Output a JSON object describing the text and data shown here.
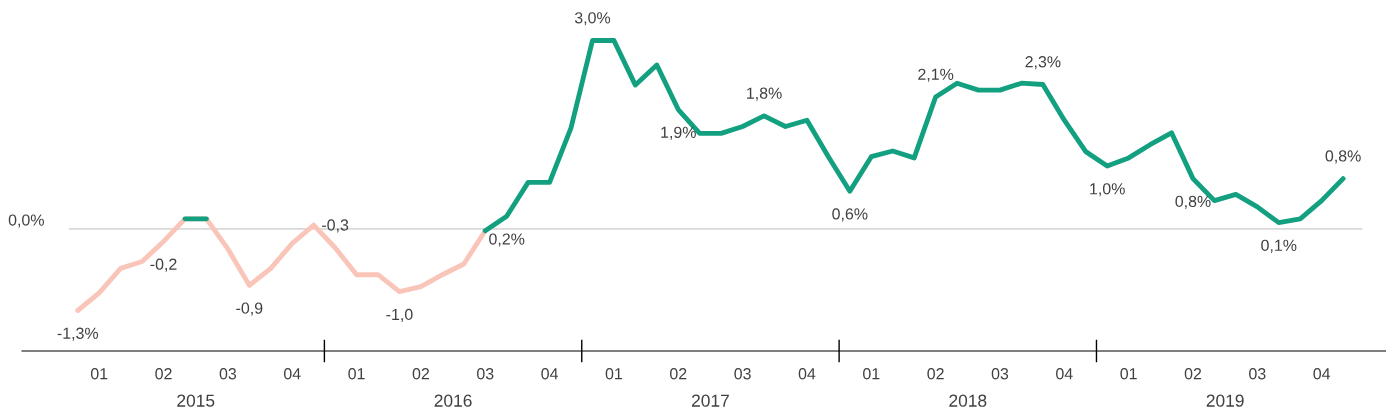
{
  "chart_data": {
    "type": "line",
    "categories": [
      null,
      "01",
      null,
      null,
      "02",
      null,
      null,
      "03",
      null,
      null,
      "04",
      null,
      null,
      "01",
      null,
      null,
      "02",
      null,
      null,
      "03",
      null,
      null,
      "04",
      null,
      null,
      "01",
      null,
      null,
      "02",
      null,
      null,
      "03",
      null,
      null,
      "04",
      null,
      null,
      "01",
      null,
      null,
      "02",
      null,
      null,
      "03",
      null,
      null,
      "04",
      null,
      null,
      "01",
      null,
      null,
      "02",
      null,
      null,
      "03",
      null,
      null,
      "04",
      null
    ],
    "series": [
      {
        "color": "#f9c5b9",
        "values": [
          -1.3,
          -1.02,
          -0.63,
          -0.52,
          -0.2,
          0.16,
          0.16,
          -0.32,
          -0.9,
          -0.63,
          -0.23,
          0.06,
          -0.3,
          -0.73,
          -0.73,
          -1.0,
          -0.92,
          -0.73,
          -0.56,
          -0.03,
          null,
          null,
          null,
          null,
          null,
          null,
          null,
          null,
          null,
          null,
          null,
          null,
          null,
          null,
          null,
          null,
          null,
          null,
          null,
          null,
          null,
          null,
          null,
          null,
          null,
          null,
          null,
          null,
          null,
          null,
          null,
          null,
          null,
          null,
          null,
          null,
          null,
          null,
          null,
          null
        ],
        "value_labels": [
          "-1,3%",
          null,
          null,
          null,
          "-0,2",
          null,
          null,
          null,
          "-0,9",
          null,
          null,
          null,
          "-0,3",
          null,
          null,
          "-1,0",
          null,
          null,
          null,
          null,
          null,
          null,
          null,
          null,
          null,
          null,
          null,
          null,
          null,
          null,
          null,
          null,
          null,
          null,
          null,
          null,
          null,
          null,
          null,
          null,
          null,
          null,
          null,
          null,
          null,
          null,
          null,
          null,
          null,
          null,
          null,
          null,
          null,
          null,
          null,
          null,
          null,
          null,
          null,
          null
        ]
      },
      {
        "color": "#13a080",
        "values": [
          null,
          null,
          null,
          null,
          null,
          0.16,
          0.16,
          null,
          null,
          null,
          null,
          null,
          null,
          null,
          null,
          null,
          null,
          null,
          null,
          -0.03,
          0.2,
          0.74,
          0.74,
          1.61,
          3.0,
          3.0,
          2.29,
          2.61,
          1.9,
          1.52,
          1.52,
          1.63,
          1.8,
          1.63,
          1.73,
          1.15,
          0.6,
          1.15,
          1.24,
          1.13,
          2.1,
          2.32,
          2.21,
          2.21,
          2.32,
          2.3,
          1.73,
          1.23,
          1.0,
          1.13,
          1.34,
          1.53,
          0.8,
          0.45,
          0.55,
          0.35,
          0.1,
          0.16,
          0.45,
          0.8
        ],
        "value_labels": [
          null,
          null,
          null,
          null,
          null,
          null,
          null,
          null,
          null,
          null,
          null,
          null,
          null,
          null,
          null,
          null,
          null,
          null,
          null,
          null,
          "0,2%",
          null,
          null,
          null,
          "3,0%",
          null,
          null,
          null,
          "1,9%",
          null,
          null,
          null,
          "1,8%",
          null,
          null,
          null,
          "0,6%",
          null,
          null,
          null,
          "2,1%",
          null,
          null,
          null,
          null,
          "2,3%",
          null,
          null,
          "1,0%",
          null,
          null,
          null,
          "0,8%",
          null,
          null,
          null,
          "0,1%",
          null,
          null,
          "0,8%"
        ]
      }
    ],
    "annotations": [
      "2015",
      "2016",
      "2017",
      "2018",
      "2019"
    ],
    "ref_lines": [
      {
        "axis": "y",
        "value": 0,
        "label": "0,0%",
        "color": "#d9d9d9"
      }
    ],
    "grid": false,
    "legend": false,
    "line_style": "solid",
    "marker": "none"
  }
}
